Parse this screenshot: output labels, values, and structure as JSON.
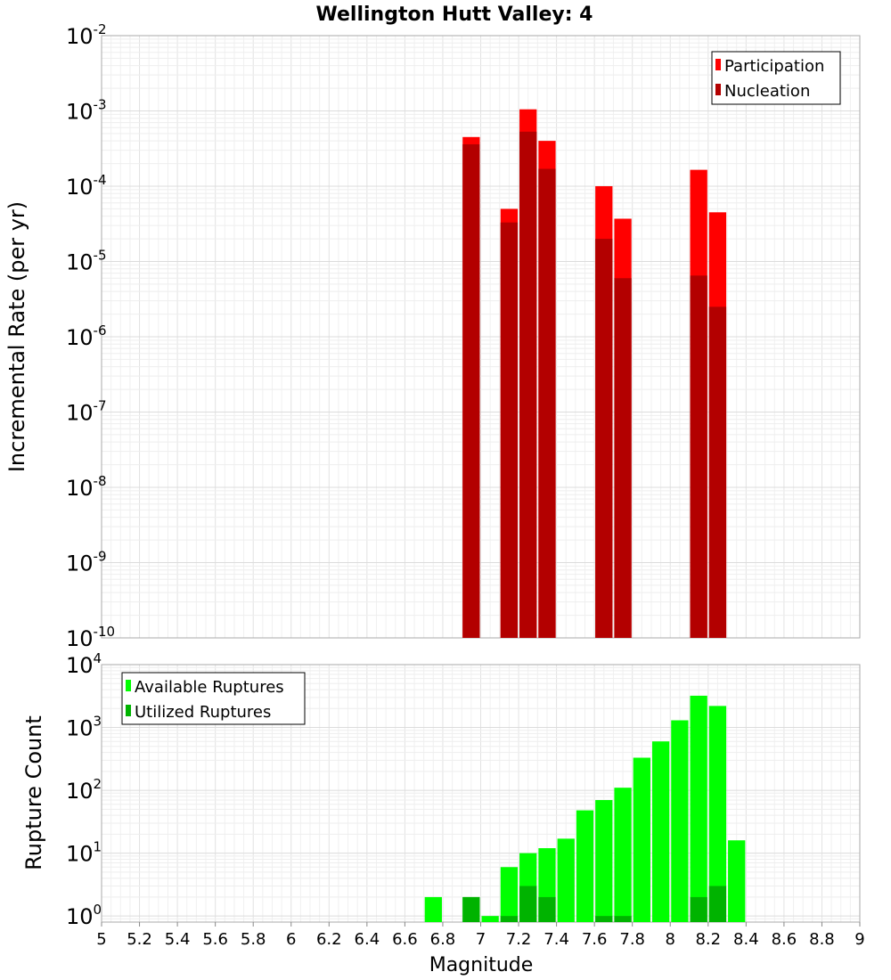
{
  "chart_data": [
    {
      "type": "bar",
      "title": "Wellington Hutt Valley: 4",
      "xlabel": "",
      "ylabel": "Incremental Rate (per yr)",
      "xlim": [
        5,
        9
      ],
      "ylim": [
        1e-10,
        0.01
      ],
      "yscale": "log",
      "grid": true,
      "legend_position": "top-right",
      "ytick_exponents": [
        -10,
        -9,
        -8,
        -7,
        -6,
        -5,
        -4,
        -3,
        -2
      ],
      "series": [
        {
          "name": "Participation",
          "color": "#ff0000",
          "x": [
            6.95,
            7.15,
            7.25,
            7.35,
            7.65,
            7.75,
            8.15,
            8.25
          ],
          "values": [
            0.00045,
            5e-05,
            0.00105,
            0.0004,
            0.0001,
            3.7e-05,
            0.000165,
            4.5e-05
          ]
        },
        {
          "name": "Nucleation",
          "color": "#b30000",
          "x": [
            6.95,
            7.15,
            7.25,
            7.35,
            7.65,
            7.75,
            8.15,
            8.25
          ],
          "values": [
            0.00036,
            3.3e-05,
            0.00053,
            0.00017,
            2e-05,
            6e-06,
            6.5e-06,
            2.5e-06
          ]
        }
      ]
    },
    {
      "type": "bar",
      "xlabel": "Magnitude",
      "ylabel": "Rupture Count",
      "xlim": [
        5,
        9
      ],
      "ylim": [
        0.8,
        10000
      ],
      "yscale": "log",
      "grid": true,
      "legend_position": "top-left",
      "xticks": [
        "5",
        "5.2",
        "5.4",
        "5.6",
        "5.8",
        "6",
        "6.2",
        "6.4",
        "6.6",
        "6.8",
        "7",
        "7.2",
        "7.4",
        "7.6",
        "7.8",
        "8",
        "8.2",
        "8.4",
        "8.6",
        "8.8",
        "9"
      ],
      "ytick_exponents": [
        0,
        1,
        2,
        3,
        4
      ],
      "series": [
        {
          "name": "Available Ruptures",
          "color": "#00ff00",
          "x": [
            6.75,
            6.95,
            7.05,
            7.15,
            7.25,
            7.35,
            7.45,
            7.55,
            7.65,
            7.75,
            7.85,
            7.95,
            8.05,
            8.15,
            8.25,
            8.35
          ],
          "values": [
            2,
            2,
            1,
            6,
            10,
            12,
            17,
            48,
            70,
            110,
            330,
            600,
            1300,
            3200,
            2200,
            16
          ]
        },
        {
          "name": "Utilized Ruptures",
          "color": "#00b300",
          "x": [
            6.95,
            7.15,
            7.25,
            7.35,
            7.65,
            7.75,
            8.15,
            8.25
          ],
          "values": [
            2,
            1,
            3,
            2,
            1,
            1,
            2,
            3
          ]
        }
      ]
    }
  ]
}
